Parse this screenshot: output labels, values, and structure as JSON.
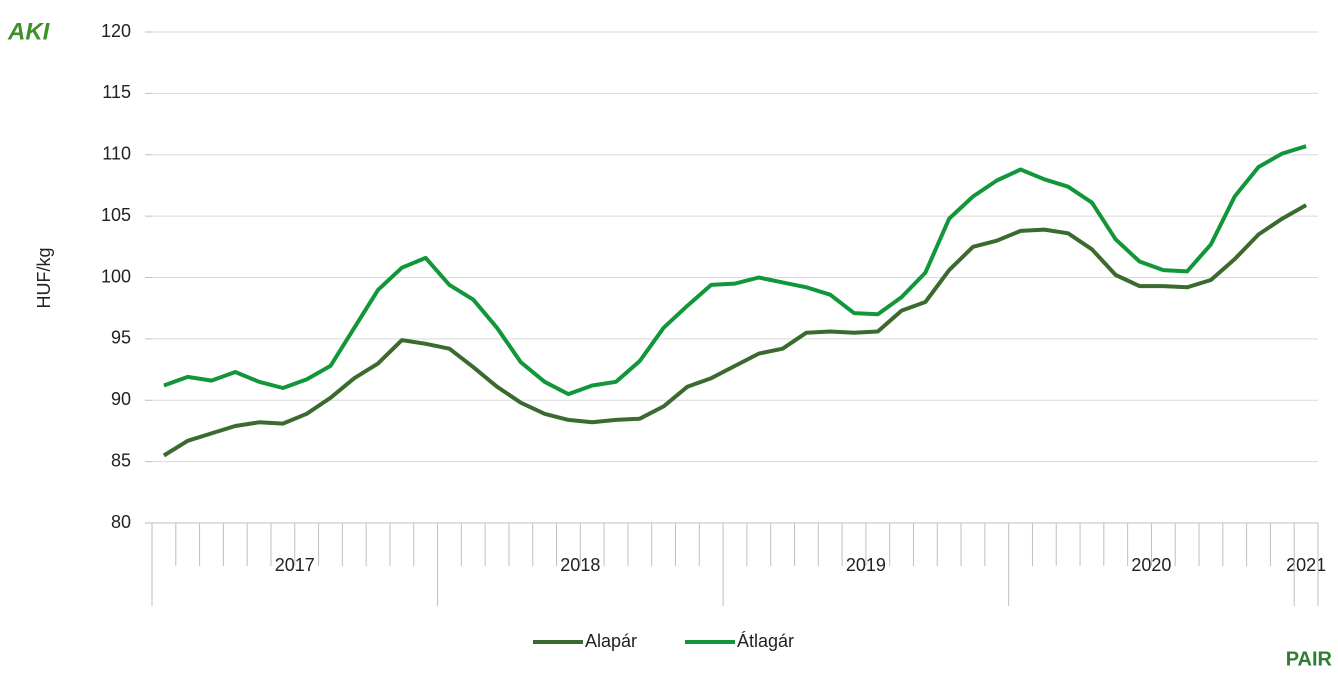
{
  "chart_data": {
    "type": "line",
    "y_label": "HUF/kg",
    "categories": [
      null,
      null,
      null,
      null,
      null,
      null,
      null,
      null,
      null,
      null,
      null,
      null,
      null,
      null,
      null,
      null,
      null,
      null,
      null,
      null,
      null,
      null,
      null,
      null,
      null,
      null,
      null,
      null,
      null,
      null,
      null,
      null,
      null,
      null,
      null,
      null,
      null,
      null,
      null,
      null,
      null,
      null,
      null,
      null,
      null,
      null,
      null,
      null,
      null
    ],
    "category_groups": [
      {
        "label": "2017",
        "span": 12
      },
      {
        "label": "2018",
        "span": 12
      },
      {
        "label": "2019",
        "span": 12
      },
      {
        "label": "2020",
        "span": 12
      },
      {
        "label": "2021",
        "span": 1
      }
    ],
    "series": [
      {
        "name": "Alapár",
        "color": "#3b6a2e",
        "values": [
          85.5,
          86.7,
          87.3,
          87.9,
          88.2,
          88.1,
          88.9,
          90.2,
          91.8,
          93.0,
          94.9,
          94.6,
          94.2,
          92.7,
          91.1,
          89.8,
          88.9,
          88.4,
          88.2,
          88.4,
          88.5,
          89.5,
          91.1,
          91.8,
          92.8,
          93.8,
          94.2,
          95.5,
          95.6,
          95.5,
          95.6,
          97.3,
          98.0,
          100.6,
          102.5,
          103.0,
          103.8,
          103.9,
          103.6,
          102.3,
          100.2,
          99.3,
          99.3,
          99.2,
          99.8,
          101.5,
          103.5,
          104.8,
          105.9
        ]
      },
      {
        "name": "Átlagár",
        "color": "#12963a",
        "values": [
          91.2,
          91.9,
          91.6,
          92.3,
          91.5,
          91.0,
          91.7,
          92.8,
          95.9,
          99.0,
          100.8,
          101.6,
          99.4,
          98.2,
          95.9,
          93.1,
          91.5,
          90.5,
          91.2,
          91.5,
          93.2,
          95.9,
          97.7,
          99.4,
          99.5,
          100.0,
          99.6,
          99.2,
          98.6,
          97.1,
          97.0,
          98.4,
          100.4,
          104.8,
          106.6,
          107.9,
          108.8,
          108.0,
          107.4,
          106.1,
          103.1,
          101.3,
          100.6,
          100.5,
          102.7,
          106.6,
          109.0,
          110.1,
          110.7
        ]
      }
    ],
    "ylim": [
      80,
      120
    ],
    "yticks": [
      80,
      85,
      90,
      95,
      100,
      105,
      110,
      115,
      120
    ],
    "grid": true,
    "legend": "bottom",
    "logos": {
      "top_left": "AKI",
      "bottom_right": "PAIR"
    }
  }
}
